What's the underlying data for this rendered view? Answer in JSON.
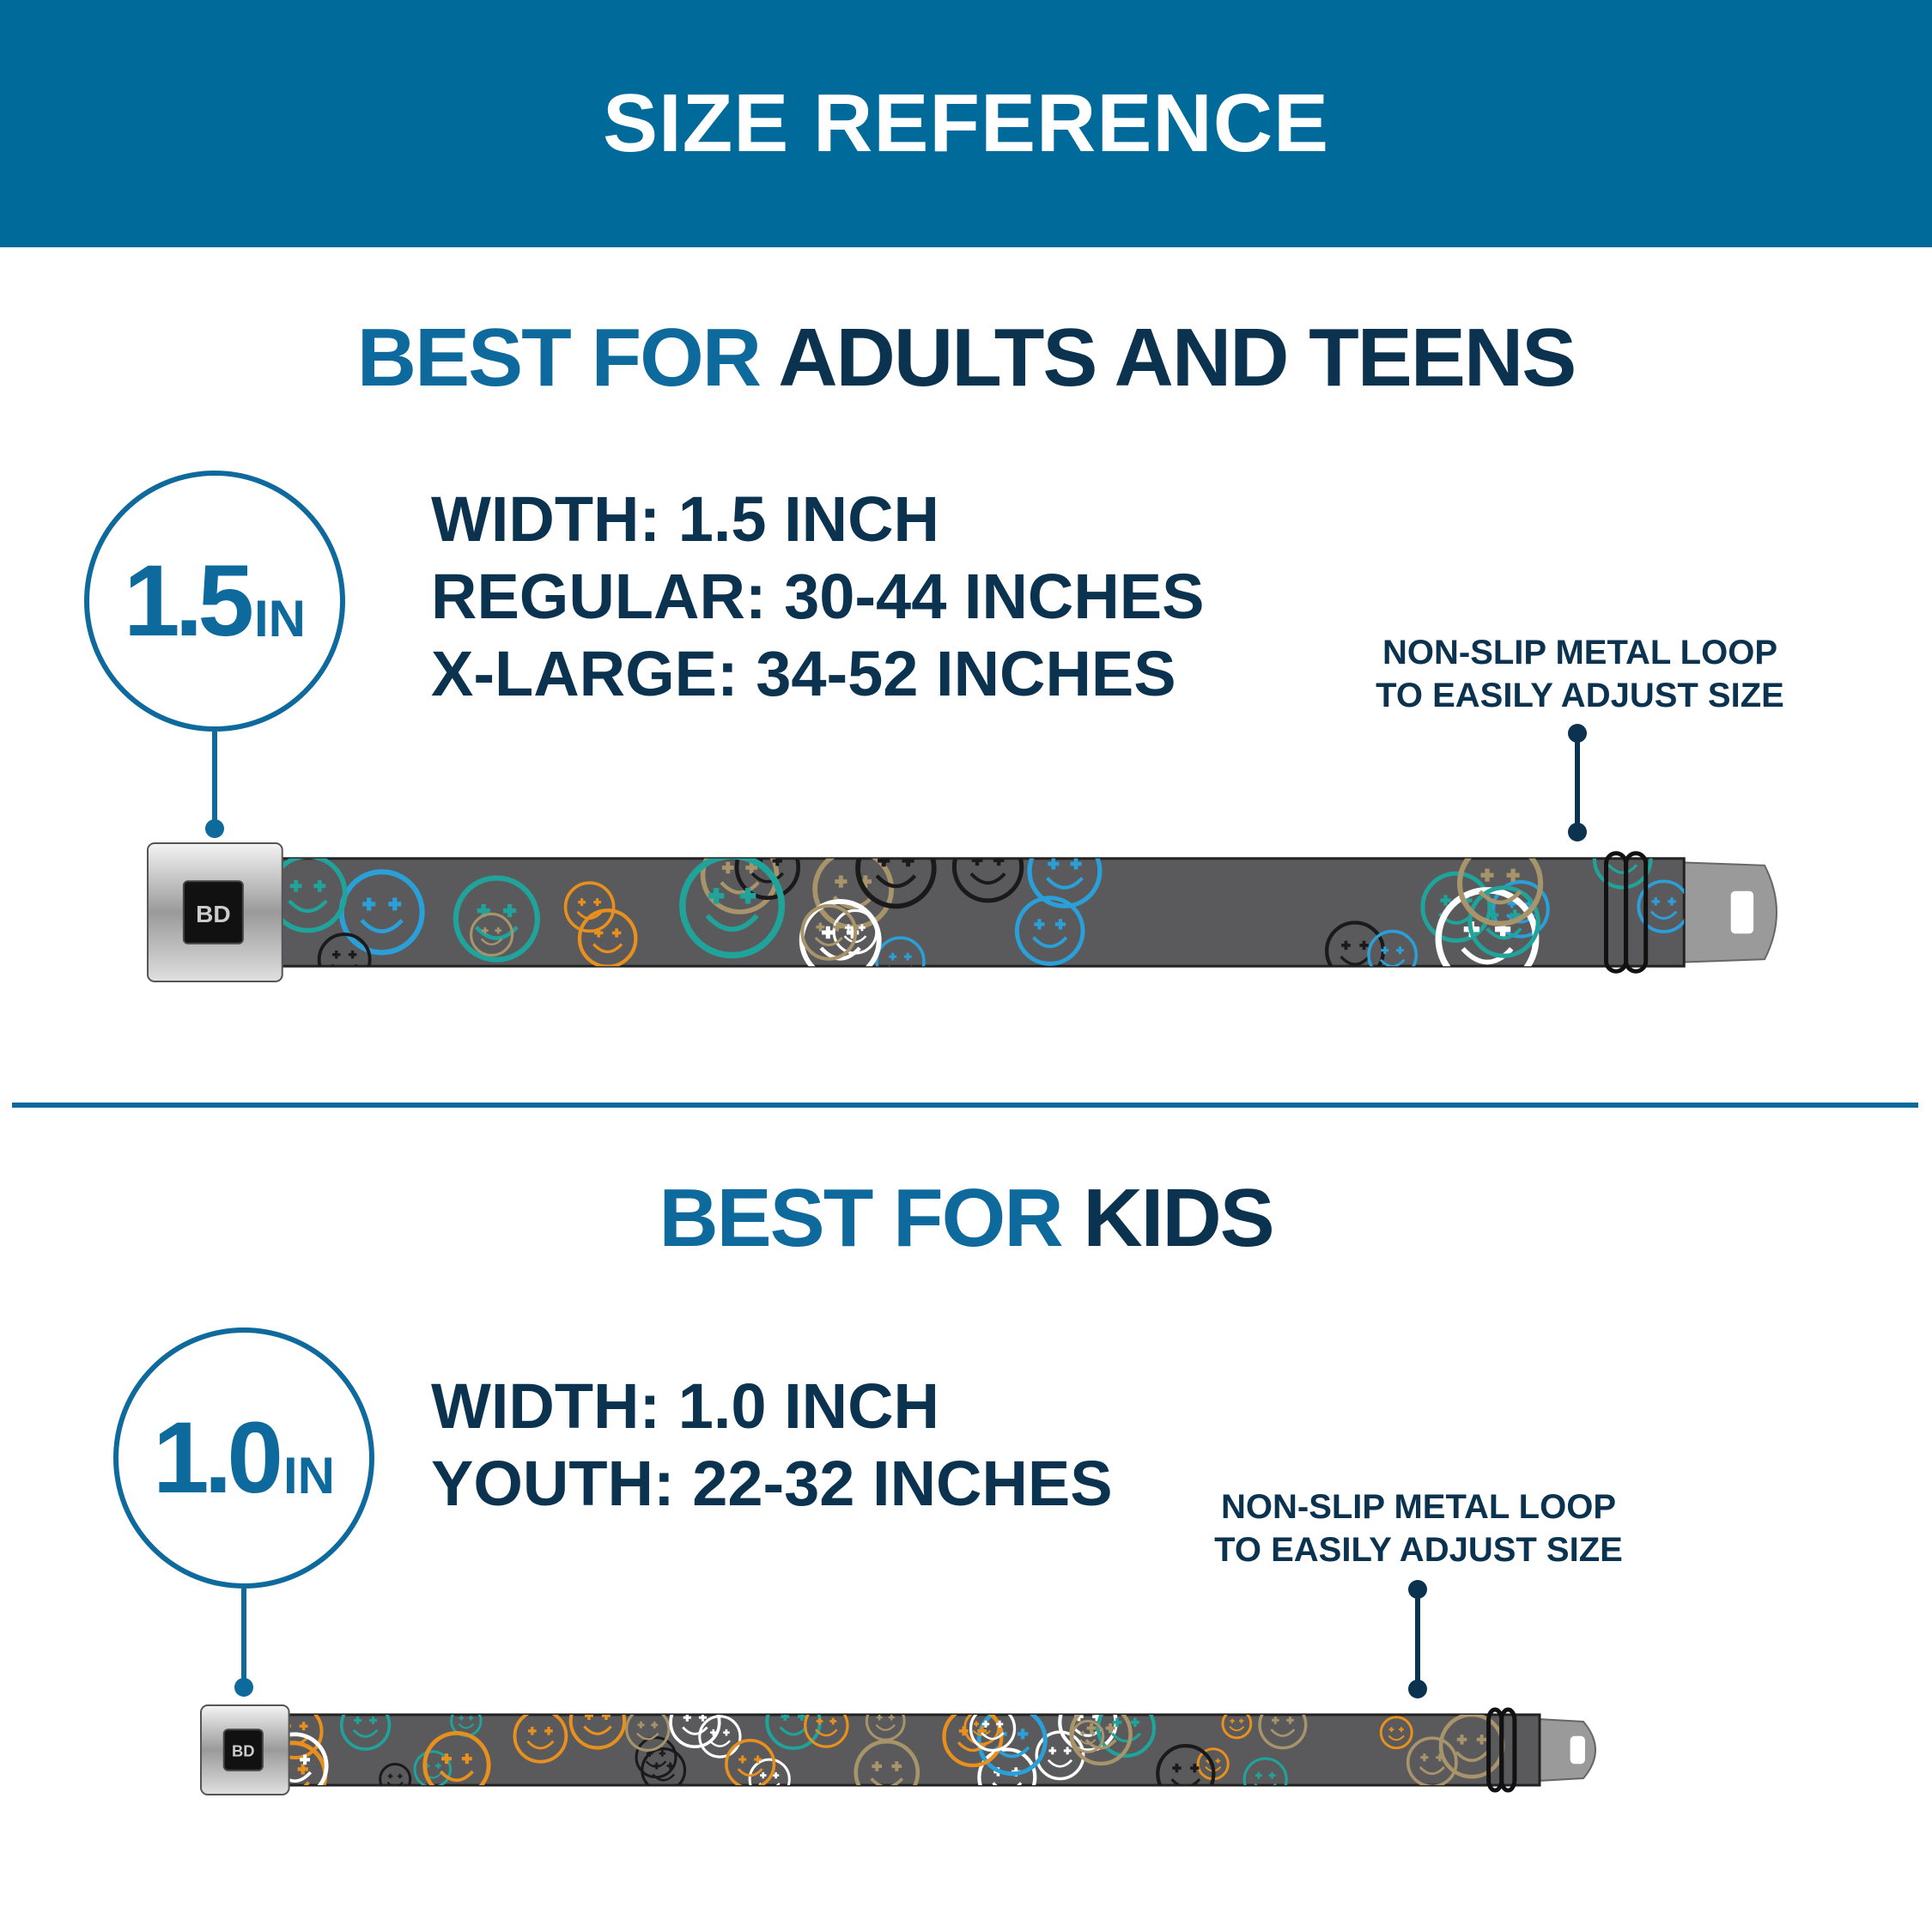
{
  "header": {
    "title": "SIZE REFERENCE"
  },
  "adults": {
    "title_accent": "BEST FOR",
    "title_main": "ADULTS AND TEENS",
    "badge_number": "1.5",
    "badge_unit": "IN",
    "specs": [
      "WIDTH: 1.5 INCH",
      "REGULAR: 30-44 INCHES",
      "X-LARGE: 34-52 INCHES"
    ],
    "callout": [
      "NON-SLIP METAL LOOP",
      "TO EASILY ADJUST SIZE"
    ],
    "belt_logo": "BD"
  },
  "kids": {
    "title_accent": "BEST FOR",
    "title_main": "KIDS",
    "badge_number": "1.0",
    "badge_unit": "IN",
    "specs": [
      "WIDTH: 1.0 INCH",
      "YOUTH: 22-32 INCHES"
    ],
    "callout": [
      "NON-SLIP METAL LOOP",
      "TO EASILY ADJUST SIZE"
    ],
    "belt_logo": "BD"
  },
  "colors": {
    "header": "#006a9a",
    "accent": "#0e6a9c",
    "navy": "#0b3350",
    "belt_pattern": [
      "#e8901e",
      "#2a9fd8",
      "#1fa39a",
      "#ffffff",
      "#a8946a",
      "#1a1a1a"
    ]
  }
}
